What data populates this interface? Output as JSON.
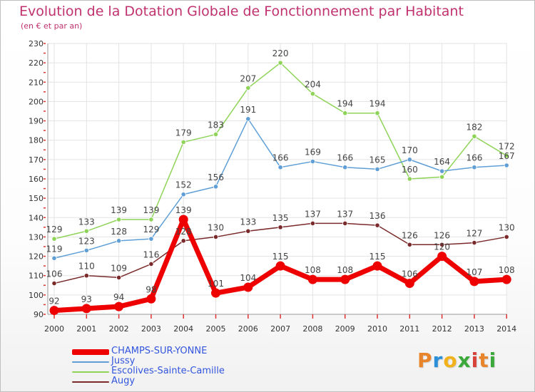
{
  "title": "Evolution de la Dotation Globale de Fonctionnement par Habitant",
  "subtitle": "(en € et par an)",
  "logo": {
    "text": "Proxiti",
    "colors": [
      "#e8842a",
      "#2a8fd8",
      "#f2b21b",
      "#3aa93a",
      "#d8403a",
      "#e8842a",
      "#3aa93a"
    ]
  },
  "chart_data": {
    "type": "line",
    "x": [
      "2000",
      "2001",
      "2002",
      "2003",
      "2004",
      "2005",
      "2006",
      "2007",
      "2008",
      "2009",
      "2010",
      "2011",
      "2012",
      "2013",
      "2014"
    ],
    "ylim": [
      90,
      230
    ],
    "yticks": [
      90,
      100,
      110,
      120,
      130,
      140,
      150,
      160,
      170,
      180,
      190,
      200,
      210,
      220,
      230
    ],
    "grid": true,
    "legend_position": "bottom-left",
    "series": [
      {
        "name": "Escolives-Sainte-Camille",
        "color": "#8fd458",
        "values": [
          129,
          133,
          139,
          139,
          179,
          183,
          207,
          220,
          204,
          194,
          194,
          160,
          161,
          182,
          172
        ]
      },
      {
        "name": "Jussy",
        "color": "#5f9fd6",
        "values": [
          119,
          123,
          128,
          129,
          152,
          156,
          191,
          166,
          169,
          166,
          165,
          170,
          164,
          166,
          167
        ]
      },
      {
        "name": "Augy",
        "color": "#7a2a2a",
        "values": [
          106,
          110,
          109,
          116,
          128,
          130,
          133,
          135,
          137,
          137,
          136,
          126,
          126,
          127,
          130
        ]
      },
      {
        "name": "CHAMPS-SUR-YONNE",
        "color": "#ee0000",
        "values": [
          92,
          93,
          94,
          98,
          139,
          101,
          104,
          115,
          108,
          108,
          115,
          106,
          120,
          107,
          108
        ]
      }
    ],
    "point_labels": {
      "Escolives-Sainte-Camille": [
        "129",
        "133",
        "139",
        "139",
        "179",
        "183",
        "207",
        "220",
        "204",
        "194",
        "194",
        "160",
        "",
        "182",
        "172"
      ],
      "Jussy": [
        "119",
        "123",
        "128",
        "129",
        "152",
        "156",
        "191",
        "166",
        "169",
        "166",
        "165",
        "170",
        "164",
        "166",
        "167"
      ],
      "Augy": [
        "106",
        "110",
        "109",
        "116",
        "128",
        "130",
        "133",
        "135",
        "137",
        "137",
        "136",
        "126",
        "126",
        "127",
        "130"
      ],
      "CHAMPS-SUR-YONNE": [
        "92",
        "93",
        "94",
        "98",
        "139",
        "101",
        "104",
        "115",
        "108",
        "108",
        "115",
        "106",
        "120",
        "107",
        "108"
      ]
    }
  },
  "legend": [
    {
      "label": "CHAMPS-SUR-YONNE",
      "color": "#ee0000",
      "text_color": "#3355dd"
    },
    {
      "label": "Jussy",
      "color": "#5f9fd6",
      "text_color": "#3355dd"
    },
    {
      "label": "Escolives-Sainte-Camille",
      "color": "#8fd458",
      "text_color": "#3355dd"
    },
    {
      "label": "Augy",
      "color": "#7a2a2a",
      "text_color": "#3355dd"
    }
  ]
}
